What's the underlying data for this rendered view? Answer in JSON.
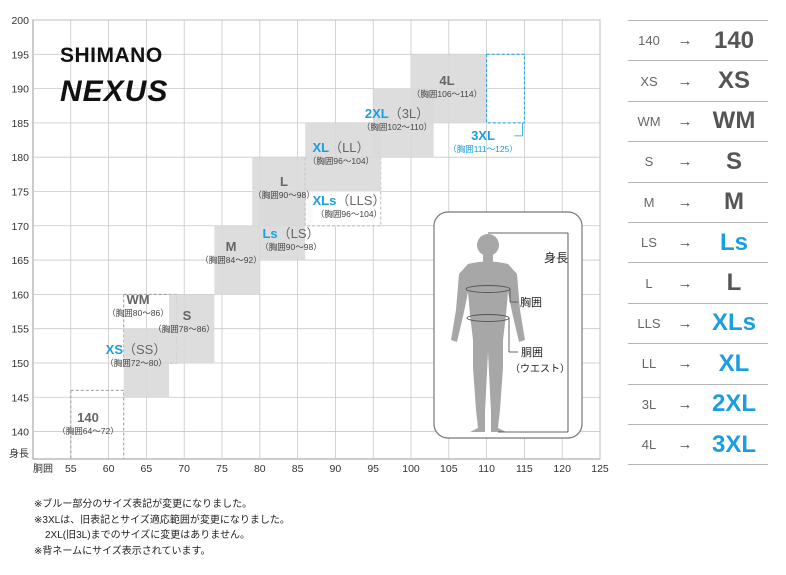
{
  "brand": {
    "line1": "SHIMANO",
    "line2": "NEXUS"
  },
  "colors": {
    "blue": "#1b9ee0",
    "box_fill": "#d9d9d9",
    "box_fill_dark": "#c9c9c9",
    "grid": "#c8c8c8",
    "text_gray": "#666666"
  },
  "chart_data": {
    "type": "size-chart",
    "xlabel": "胴囲",
    "ylabel": "身長",
    "xlim": [
      50,
      125
    ],
    "ylim": [
      136,
      200
    ],
    "x_ticks": [
      55,
      60,
      65,
      70,
      75,
      80,
      85,
      90,
      95,
      100,
      105,
      110,
      115,
      120,
      125
    ],
    "y_ticks": [
      140,
      145,
      150,
      155,
      160,
      165,
      170,
      175,
      180,
      185,
      190,
      195,
      200
    ],
    "grid": true,
    "sizes": [
      {
        "name": "140",
        "alt": "",
        "chest": "（胸囲64～72）",
        "x": [
          55,
          62
        ],
        "y": [
          136,
          146
        ],
        "style": "dashed",
        "changed": false
      },
      {
        "name": "XS",
        "alt": "（SS）",
        "chest": "（胸囲72～80）",
        "x": [
          62,
          68
        ],
        "y": [
          145,
          155
        ],
        "style": "filled",
        "changed": true
      },
      {
        "name": "WM",
        "alt": "",
        "chest": "（胸囲80～86）",
        "x": [
          62,
          69
        ],
        "y": [
          150,
          160
        ],
        "style": "dashed",
        "changed": false
      },
      {
        "name": "S",
        "alt": "",
        "chest": "（胸囲78～86）",
        "x": [
          68,
          74
        ],
        "y": [
          150,
          160
        ],
        "style": "filled",
        "changed": false
      },
      {
        "name": "M",
        "alt": "",
        "chest": "（胸囲84～92）",
        "x": [
          74,
          80
        ],
        "y": [
          160,
          170
        ],
        "style": "filled",
        "changed": false
      },
      {
        "name": "Ls",
        "alt": "（LS）",
        "chest": "（胸囲90～98）",
        "x": [
          80,
          86
        ],
        "y": [
          165,
          175
        ],
        "style": "filled",
        "changed": true
      },
      {
        "name": "L",
        "alt": "",
        "chest": "（胸囲90～98）",
        "x": [
          79,
          87
        ],
        "y": [
          170,
          180
        ],
        "style": "filled",
        "changed": false
      },
      {
        "name": "XLs",
        "alt": "（LLS）",
        "chest": "（胸囲96～104）",
        "x": [
          86,
          96
        ],
        "y": [
          170,
          180
        ],
        "style": "filled-light",
        "changed": true
      },
      {
        "name": "XL",
        "alt": "（LL）",
        "chest": "（胸囲96～104）",
        "x": [
          86,
          96
        ],
        "y": [
          175,
          185
        ],
        "style": "filled",
        "changed": true
      },
      {
        "name": "2XL",
        "alt": "（3L）",
        "chest": "（胸囲102～110）",
        "x": [
          95,
          103
        ],
        "y": [
          180,
          190
        ],
        "style": "filled",
        "changed": true
      },
      {
        "name": "4L",
        "alt": "",
        "chest": "（胸囲106～114）",
        "x": [
          100,
          110
        ],
        "y": [
          185,
          195
        ],
        "style": "filled",
        "changed": false
      },
      {
        "name": "3XL",
        "alt": "",
        "chest": "（胸囲111～125）",
        "x": [
          110,
          115
        ],
        "y": [
          185,
          195
        ],
        "style": "dashed-blue",
        "changed": true
      }
    ]
  },
  "figure": {
    "height_label": "身長",
    "chest_label": "胸囲",
    "waist_label": "胴囲",
    "waist_sub": "（ウエスト）"
  },
  "conversion": [
    {
      "from": "140",
      "to": "140",
      "blue": false
    },
    {
      "from": "XS",
      "to": "XS",
      "blue": false
    },
    {
      "from": "WM",
      "to": "WM",
      "blue": false
    },
    {
      "from": "S",
      "to": "S",
      "blue": false
    },
    {
      "from": "M",
      "to": "M",
      "blue": false
    },
    {
      "from": "LS",
      "to": "Ls",
      "blue": true
    },
    {
      "from": "L",
      "to": "L",
      "blue": false
    },
    {
      "from": "LLS",
      "to": "XLs",
      "blue": true
    },
    {
      "from": "LL",
      "to": "XL",
      "blue": true
    },
    {
      "from": "3L",
      "to": "2XL",
      "blue": true
    },
    {
      "from": "4L",
      "to": "3XL",
      "blue": true
    }
  ],
  "arrow": "→",
  "notes": [
    "※ブルー部分のサイズ表記が変更になりました。",
    "※3XLは、旧表記とサイズ適応範囲が変更になりました。",
    "2XL(旧3L)までのサイズに変更はありません。",
    "※背ネームにサイズ表示されています。"
  ]
}
